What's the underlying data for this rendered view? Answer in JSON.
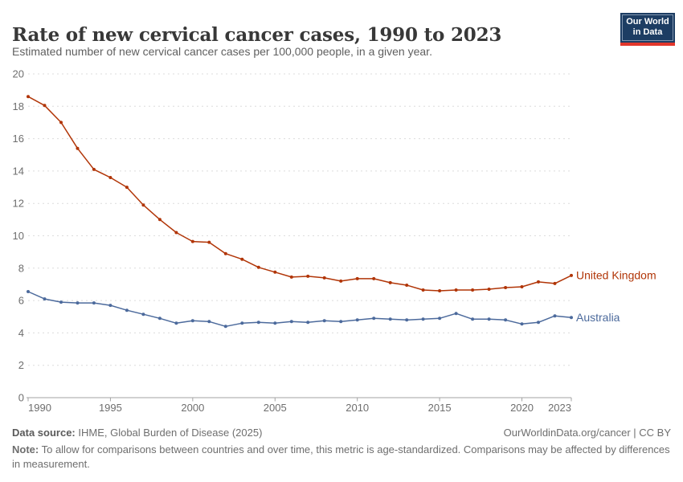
{
  "header": {
    "title": "Rate of new cervical cancer cases, 1990 to 2023",
    "subtitle": "Estimated number of new cervical cancer cases per 100,000 people, in a given year.",
    "logo": {
      "line1": "Our World",
      "line2": "in Data",
      "bg_color": "#1d3d63",
      "bar_color": "#e2362b"
    }
  },
  "chart_data": {
    "type": "line",
    "title": "Rate of new cervical cancer cases, 1990 to 2023",
    "xlabel": "",
    "ylabel": "",
    "ylim": [
      0,
      20
    ],
    "yticks": [
      0,
      2,
      4,
      6,
      8,
      10,
      12,
      14,
      16,
      18,
      20
    ],
    "xticks": [
      1990,
      1995,
      2000,
      2005,
      2010,
      2015,
      2020,
      2023
    ],
    "grid": "horizontal dashed",
    "legend_position": "end-of-line labels",
    "grid_color": "#dcdcdc",
    "axis_color": "#a3a3a3",
    "x": [
      1990,
      1991,
      1992,
      1993,
      1994,
      1995,
      1996,
      1997,
      1998,
      1999,
      2000,
      2001,
      2002,
      2003,
      2004,
      2005,
      2006,
      2007,
      2008,
      2009,
      2010,
      2011,
      2012,
      2013,
      2014,
      2015,
      2016,
      2017,
      2018,
      2019,
      2020,
      2021,
      2022,
      2023
    ],
    "series": [
      {
        "name": "United Kingdom",
        "color": "#B13507",
        "values": [
          18.6,
          18.05,
          17.0,
          15.4,
          14.1,
          13.6,
          13.0,
          11.9,
          11.0,
          10.2,
          9.65,
          9.6,
          8.9,
          8.55,
          8.05,
          7.75,
          7.45,
          7.5,
          7.4,
          7.2,
          7.35,
          7.35,
          7.1,
          6.95,
          6.65,
          6.6,
          6.65,
          6.65,
          6.7,
          6.8,
          6.85,
          7.15,
          7.05,
          7.55
        ]
      },
      {
        "name": "Australia",
        "color": "#4C6A9C",
        "values": [
          6.55,
          6.1,
          5.9,
          5.85,
          5.85,
          5.7,
          5.4,
          5.15,
          4.9,
          4.6,
          4.75,
          4.7,
          4.4,
          4.6,
          4.65,
          4.6,
          4.7,
          4.65,
          4.75,
          4.7,
          4.8,
          4.9,
          4.85,
          4.8,
          4.85,
          4.9,
          5.2,
          4.85,
          4.85,
          4.8,
          4.55,
          4.65,
          5.05,
          4.95
        ]
      }
    ]
  },
  "footer": {
    "source_label": "Data source:",
    "source_text": " IHME, Global Burden of Disease (2025)",
    "link_text": "OurWorldinData.org/cancer | CC BY",
    "note_label": "Note:",
    "note_text": " To allow for comparisons between countries and over time, this metric is age-standardized. Comparisons may be affected by differences in measurement."
  }
}
